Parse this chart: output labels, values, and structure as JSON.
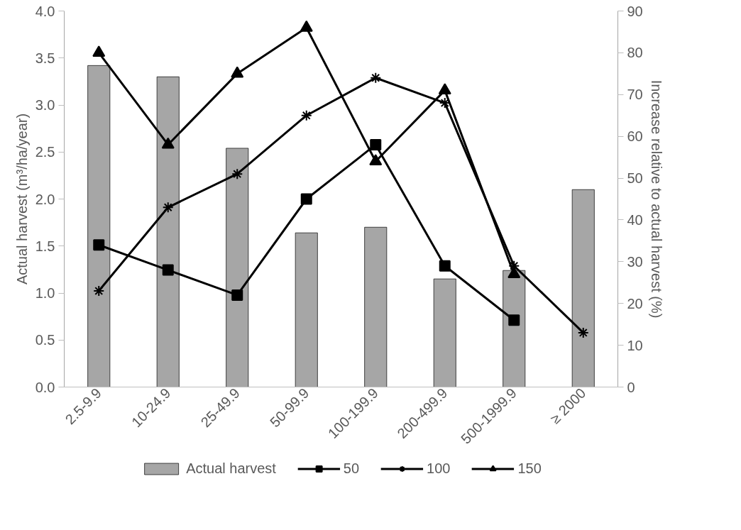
{
  "chart_data": {
    "type": "bar",
    "ylabel": "Actual harvest (m³/ha/year)",
    "y2label": "Increase relative to actual harvest (%)",
    "categories": [
      "2.5-9.9",
      "10-24.9",
      "25-49.9",
      "50-99.9",
      "100-199.9",
      "200-499.9",
      "500-1999.9",
      "≥ 2000"
    ],
    "ylim": [
      0,
      4
    ],
    "yticks": [
      {
        "value": 0,
        "label": "0.0"
      },
      {
        "value": 0.5,
        "label": "0.5"
      },
      {
        "value": 1,
        "label": "1.0"
      },
      {
        "value": 1.5,
        "label": "1.5"
      },
      {
        "value": 2,
        "label": "2.0"
      },
      {
        "value": 2.5,
        "label": "2.5"
      },
      {
        "value": 3,
        "label": "3.0"
      },
      {
        "value": 3.5,
        "label": "3.5"
      },
      {
        "value": 4,
        "label": "4.0"
      }
    ],
    "y2lim": [
      0,
      90
    ],
    "y2ticks": [
      0,
      10,
      20,
      30,
      40,
      50,
      60,
      70,
      80,
      90
    ],
    "grid": false,
    "legend": "bottom",
    "series": [
      {
        "name": "Actual harvest",
        "color": "#a6a6a6",
        "values": [
          3.42,
          3.3,
          2.54,
          1.64,
          1.7,
          1.15,
          1.24,
          2.1
        ]
      },
      {
        "name": "50",
        "type": "line",
        "axis": "y2",
        "color": "#000000",
        "marker": "square",
        "values": [
          34,
          28,
          22,
          45,
          58,
          29,
          16,
          null
        ]
      },
      {
        "name": "100",
        "type": "line",
        "axis": "y2",
        "color": "#000000",
        "marker": "cross",
        "values": [
          23,
          43,
          51,
          65,
          74,
          68,
          29,
          13
        ]
      },
      {
        "name": "150",
        "type": "line",
        "axis": "y2",
        "color": "#000000",
        "marker": "triangle",
        "values": [
          80,
          58,
          75,
          86,
          54,
          71,
          27,
          null
        ]
      }
    ]
  }
}
